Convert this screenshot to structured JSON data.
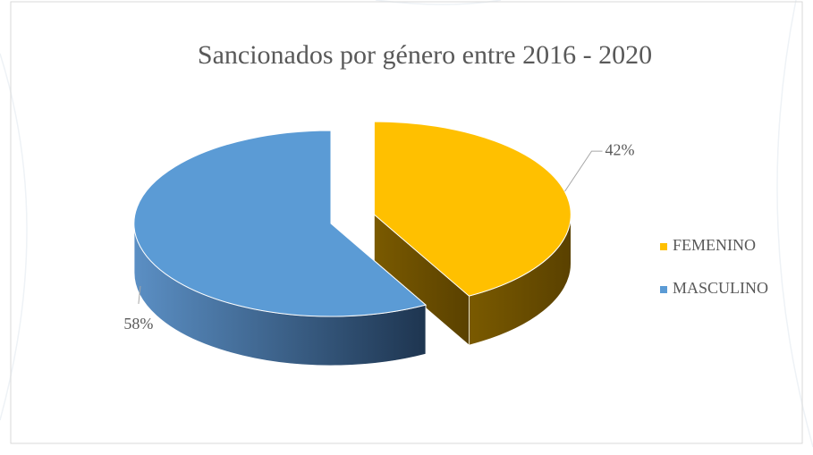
{
  "chart_data": {
    "type": "pie",
    "title": "Sancionados por género entre 2016 - 2020",
    "categories": [
      "FEMENINO",
      "MASCULINO"
    ],
    "values": [
      42,
      58
    ],
    "value_labels": [
      "42%",
      "58%"
    ],
    "colors": [
      "#FFC000",
      "#5B9BD5"
    ],
    "legend": "right"
  }
}
